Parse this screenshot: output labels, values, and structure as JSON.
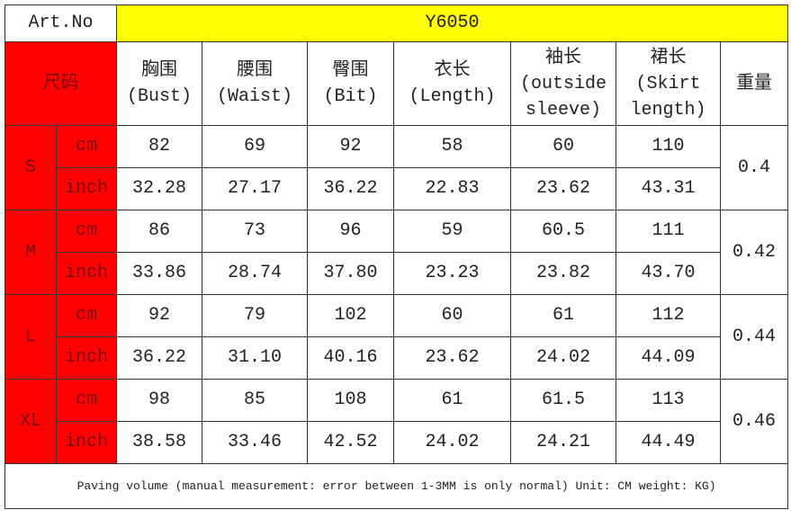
{
  "header": {
    "label": "Art.No",
    "value": "Y6050"
  },
  "table": {
    "size_label": "尺码",
    "columns": [
      {
        "zh": "胸围",
        "en": "(Bust)"
      },
      {
        "zh": "腰围",
        "en": "(Waist)"
      },
      {
        "zh": "臀围",
        "en": "(Bit)"
      },
      {
        "zh": "衣长",
        "en": "(Length)"
      },
      {
        "zh": "袖长",
        "en": "(outside sleeve)"
      },
      {
        "zh": "裙长",
        "en": "(Skirt length)"
      }
    ],
    "weight_label": "重量",
    "rows": [
      {
        "size": "S",
        "weight": "0.4",
        "units": [
          {
            "unit": "cm",
            "values": [
              "82",
              "69",
              "92",
              "58",
              "60",
              "110"
            ]
          },
          {
            "unit": "inch",
            "values": [
              "32.28",
              "27.17",
              "36.22",
              "22.83",
              "23.62",
              "43.31"
            ]
          }
        ]
      },
      {
        "size": "M",
        "weight": "0.42",
        "units": [
          {
            "unit": "cm",
            "values": [
              "86",
              "73",
              "96",
              "59",
              "60.5",
              "111"
            ]
          },
          {
            "unit": "inch",
            "values": [
              "33.86",
              "28.74",
              "37.80",
              "23.23",
              "23.82",
              "43.70"
            ]
          }
        ]
      },
      {
        "size": "L",
        "weight": "0.44",
        "units": [
          {
            "unit": "cm",
            "values": [
              "92",
              "79",
              "102",
              "60",
              "61",
              "112"
            ]
          },
          {
            "unit": "inch",
            "values": [
              "36.22",
              "31.10",
              "40.16",
              "23.62",
              "24.02",
              "44.09"
            ]
          }
        ]
      },
      {
        "size": "XL",
        "weight": "0.46",
        "units": [
          {
            "unit": "cm",
            "values": [
              "98",
              "85",
              "108",
              "61",
              "61.5",
              "113"
            ]
          },
          {
            "unit": "inch",
            "values": [
              "38.58",
              "33.46",
              "42.52",
              "24.02",
              "24.21",
              "44.49"
            ]
          }
        ]
      }
    ]
  },
  "footer": "Paving volume (manual measurement: error between 1-3MM is only normal) Unit: CM weight: KG)"
}
